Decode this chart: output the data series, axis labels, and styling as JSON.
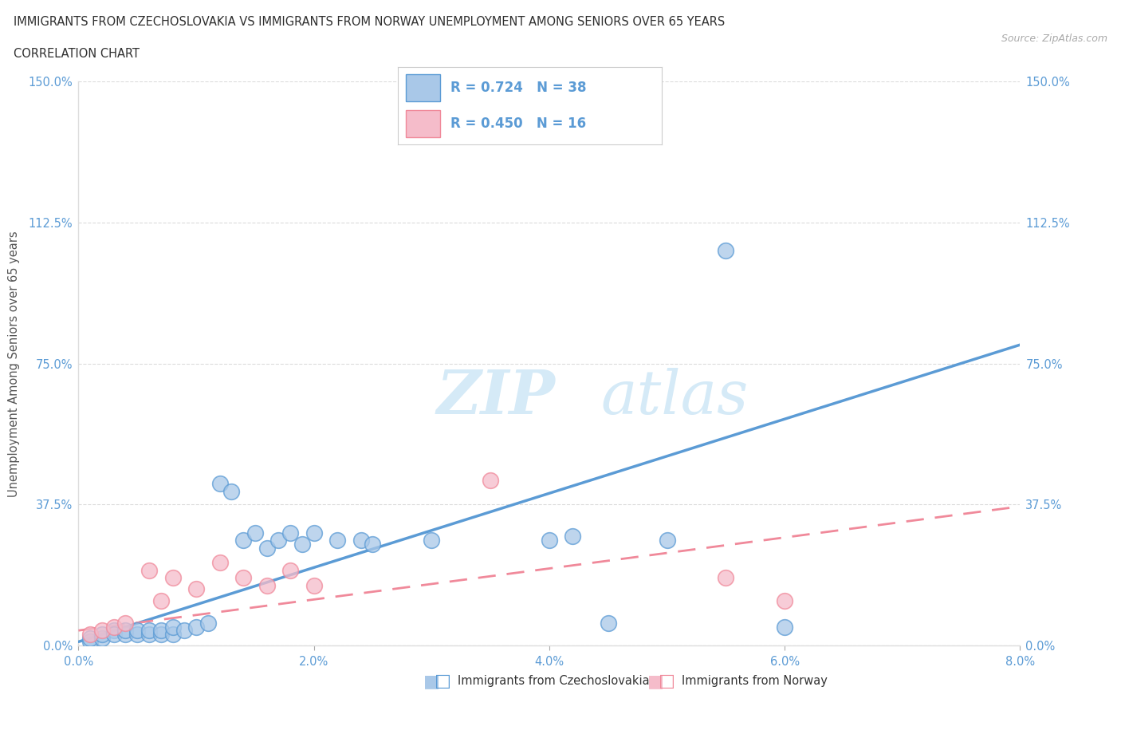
{
  "title_line1": "IMMIGRANTS FROM CZECHOSLOVAKIA VS IMMIGRANTS FROM NORWAY UNEMPLOYMENT AMONG SENIORS OVER 65 YEARS",
  "title_line2": "CORRELATION CHART",
  "source_text": "Source: ZipAtlas.com",
  "xlabel_blue": "Immigrants from Czechoslovakia",
  "xlabel_pink": "Immigrants from Norway",
  "ylabel": "Unemployment Among Seniors over 65 years",
  "xlim": [
    0.0,
    0.08
  ],
  "ylim": [
    0.0,
    1.5
  ],
  "xtick_labels": [
    "0.0%",
    "2.0%",
    "4.0%",
    "6.0%",
    "8.0%"
  ],
  "xtick_values": [
    0.0,
    0.02,
    0.04,
    0.06,
    0.08
  ],
  "ytick_labels": [
    "0.0%",
    "37.5%",
    "75.0%",
    "112.5%",
    "150.0%"
  ],
  "ytick_values": [
    0.0,
    0.375,
    0.75,
    1.125,
    1.5
  ],
  "color_blue": "#5B9BD5",
  "color_blue_fill": "#A9C8E8",
  "color_pink": "#F0899A",
  "color_pink_fill": "#F5BCCA",
  "watermark_zip_color": "#C8E0F0",
  "watermark_atlas_color": "#C8E0F0",
  "background_color": "#FFFFFF",
  "grid_color": "#CCCCCC",
  "axis_tick_color": "#5B9BD5",
  "blue_scatter_x": [
    0.001,
    0.001,
    0.002,
    0.002,
    0.003,
    0.003,
    0.004,
    0.004,
    0.005,
    0.005,
    0.006,
    0.006,
    0.007,
    0.007,
    0.008,
    0.008,
    0.009,
    0.01,
    0.011,
    0.012,
    0.013,
    0.014,
    0.015,
    0.016,
    0.017,
    0.018,
    0.019,
    0.02,
    0.022,
    0.024,
    0.025,
    0.03,
    0.04,
    0.042,
    0.045,
    0.05,
    0.055,
    0.06
  ],
  "blue_scatter_y": [
    0.01,
    0.02,
    0.02,
    0.03,
    0.04,
    0.03,
    0.03,
    0.04,
    0.03,
    0.04,
    0.03,
    0.04,
    0.03,
    0.04,
    0.03,
    0.05,
    0.04,
    0.05,
    0.06,
    0.43,
    0.41,
    0.28,
    0.3,
    0.26,
    0.28,
    0.3,
    0.27,
    0.3,
    0.28,
    0.28,
    0.27,
    0.28,
    0.28,
    0.29,
    0.06,
    0.28,
    1.05,
    0.05
  ],
  "pink_scatter_x": [
    0.001,
    0.002,
    0.003,
    0.004,
    0.006,
    0.007,
    0.008,
    0.01,
    0.012,
    0.014,
    0.016,
    0.018,
    0.02,
    0.035,
    0.055,
    0.06
  ],
  "pink_scatter_y": [
    0.03,
    0.04,
    0.05,
    0.06,
    0.2,
    0.12,
    0.18,
    0.15,
    0.22,
    0.18,
    0.16,
    0.2,
    0.16,
    0.44,
    0.18,
    0.12
  ],
  "blue_line_x": [
    0.0,
    0.08
  ],
  "blue_line_y": [
    0.01,
    0.8
  ],
  "pink_line_x": [
    0.0,
    0.08
  ],
  "pink_line_y": [
    0.04,
    0.37
  ]
}
